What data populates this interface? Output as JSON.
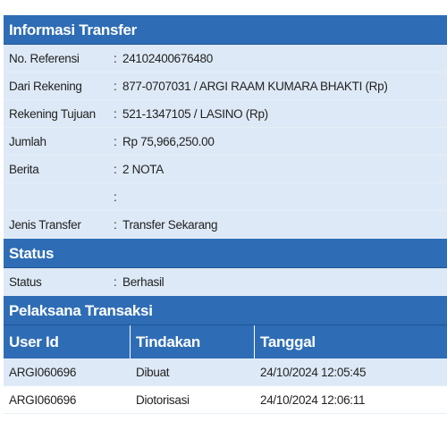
{
  "transfer_info": {
    "header": "Informasi Transfer",
    "rows": [
      {
        "label": "No. Referensi",
        "value": "24102400676480"
      },
      {
        "label": "Dari Rekening",
        "value": "877-0707031 / ARGI RAAM KUMARA BHAKTI  (Rp)"
      },
      {
        "label": "Rekening Tujuan",
        "value": "521-1347105 / LASINO  (Rp)"
      },
      {
        "label": "Jumlah",
        "value": "Rp  75,966,250.00"
      },
      {
        "label": "Berita",
        "value": "2 NOTA"
      },
      {
        "label": "",
        "value": ""
      },
      {
        "label": "Jenis Transfer",
        "value": "Transfer Sekarang"
      }
    ]
  },
  "status": {
    "header": "Status",
    "label": "Status",
    "value": "Berhasil"
  },
  "executor": {
    "header": "Pelaksana Transaksi",
    "columns": [
      "User Id",
      "Tindakan",
      "Tanggal"
    ],
    "rows": [
      [
        "ARGI060696",
        "Dibuat",
        "24/10/2024 12:05:45"
      ],
      [
        "ARGI060696",
        "Diotorisasi",
        "24/10/2024 12:06:11"
      ]
    ]
  },
  "colon": ":"
}
